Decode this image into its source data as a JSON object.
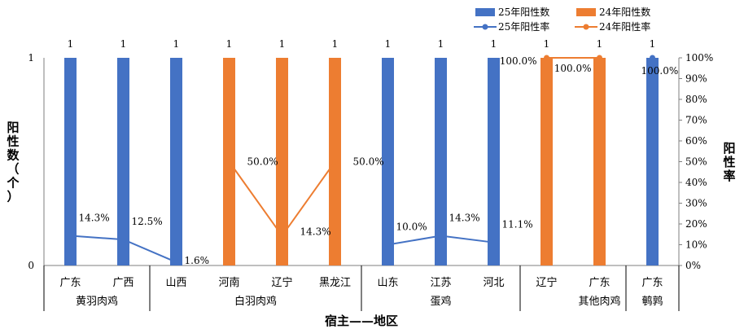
{
  "chart_data": {
    "type": "bar+line",
    "xlabel": "宿主——地区",
    "ylabel_left": "阳性数（个）",
    "ylabel_right": "阳性率",
    "ylim_left": [
      0,
      1
    ],
    "left_ticks": [
      "0",
      "1"
    ],
    "ylim_right": [
      0,
      100
    ],
    "right_ticks": [
      "0%",
      "10%",
      "20%",
      "30%",
      "40%",
      "50%",
      "60%",
      "70%",
      "80%",
      "90%",
      "100%"
    ],
    "categories": [
      "广东",
      "广西",
      "山西",
      "河南",
      "辽宁",
      "黑龙江",
      "山东",
      "江苏",
      "河北",
      "辽宁",
      "广东",
      "广东"
    ],
    "groups": [
      {
        "label": "黄羽肉鸡",
        "start": 0,
        "count": 2
      },
      {
        "label": "白羽肉鸡",
        "start": 2,
        "count": 4
      },
      {
        "label": "蛋鸡",
        "start": 6,
        "count": 3
      },
      {
        "label": "其他肉鸡",
        "start": 10,
        "count": 1
      },
      {
        "label": "鹌鹑",
        "start": 11,
        "count": 1
      }
    ],
    "legend": {
      "bar25": "25年阳性数",
      "bar24": "24年阳性数",
      "line25": "25年阳性率",
      "line24": "24年阳性率"
    },
    "legend_position": "top-right",
    "bars25": [
      1,
      1,
      1,
      null,
      null,
      null,
      1,
      1,
      1,
      null,
      null,
      1
    ],
    "bars24": [
      null,
      null,
      null,
      1,
      1,
      1,
      null,
      null,
      null,
      1,
      1,
      null
    ],
    "bar_labels": [
      "1",
      "1",
      "1",
      "1",
      "1",
      "1",
      "1",
      "1",
      "1",
      "1",
      "1",
      "1"
    ],
    "rate25": [
      14.3,
      12.5,
      1.6,
      null,
      null,
      null,
      10.0,
      14.3,
      11.1,
      null,
      null,
      100.0
    ],
    "rate25_labels": [
      "14.3%",
      "12.5%",
      "1.6%",
      "",
      "",
      "",
      "10.0%",
      "14.3%",
      "11.1%",
      "",
      "",
      "100.0%"
    ],
    "rate24": [
      null,
      null,
      null,
      50.0,
      14.3,
      50.0,
      null,
      null,
      null,
      100.0,
      100.0,
      null
    ],
    "rate24_labels": [
      "",
      "",
      "",
      "50.0%",
      "14.3%",
      "50.0%",
      "",
      "",
      "",
      "100.0%",
      "100.0%",
      ""
    ],
    "colors": {
      "y25": "#4472c4",
      "y24": "#ed7d31",
      "axis": "#7f7f7f",
      "text": "#000000"
    }
  }
}
